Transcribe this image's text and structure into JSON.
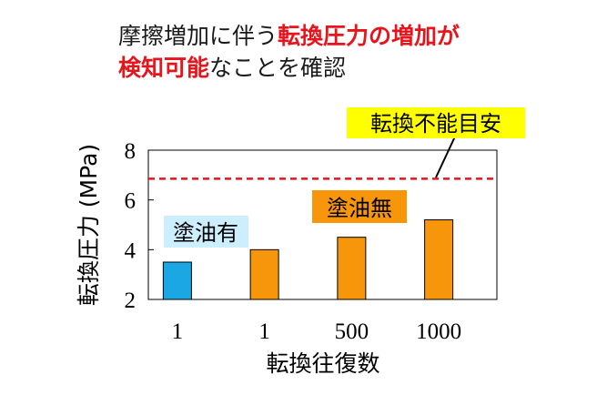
{
  "title": {
    "line1_normal": "摩擦増加に伴う",
    "line1_red": "転換圧力の増加が",
    "line2_red": "検知可能",
    "line2_normal": "なことを確認"
  },
  "chart_data": {
    "type": "bar",
    "categories": [
      "1",
      "1",
      "500",
      "1000"
    ],
    "values": [
      3.5,
      4.0,
      4.5,
      5.2
    ],
    "bar_colors": [
      "#1ba7e3",
      "#f7960a",
      "#f7960a",
      "#f7960a"
    ],
    "ylabel": "転換圧力 (MPa)",
    "xlabel": "転換往復数",
    "ylim": [
      2,
      8
    ],
    "yticks": [
      "2",
      "4",
      "6",
      "8"
    ],
    "threshold": {
      "value": 6.85,
      "label": "転換不能目安",
      "color": "#e8141b",
      "label_bg": "#ffff00"
    },
    "annotations": [
      {
        "text": "塗油有",
        "bg": "#cceeff"
      },
      {
        "text": "塗油無",
        "bg": "#f7960a"
      }
    ],
    "grid": false
  }
}
